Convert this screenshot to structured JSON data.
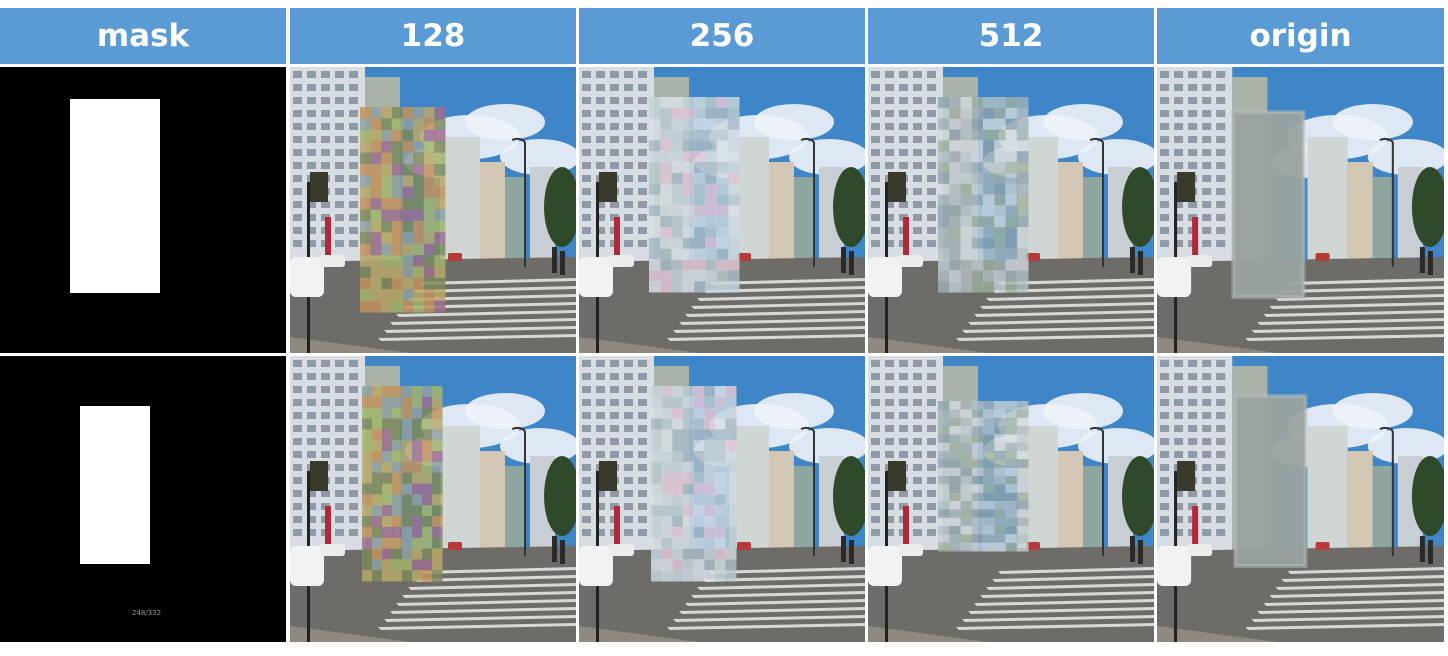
{
  "headers": [
    "mask",
    "128",
    "256",
    "512",
    "origin"
  ],
  "rows": [
    {
      "mask_caption": ""
    },
    {
      "mask_caption": "248/332"
    }
  ],
  "colors": {
    "header_bg": "#5b9bd5",
    "header_text": "#ffffff",
    "sky": "#3f86c8",
    "road": "#6d6c68",
    "mask_white": "#ffffff",
    "mask_black": "#000000",
    "patch_origin": "#9aa39f"
  }
}
